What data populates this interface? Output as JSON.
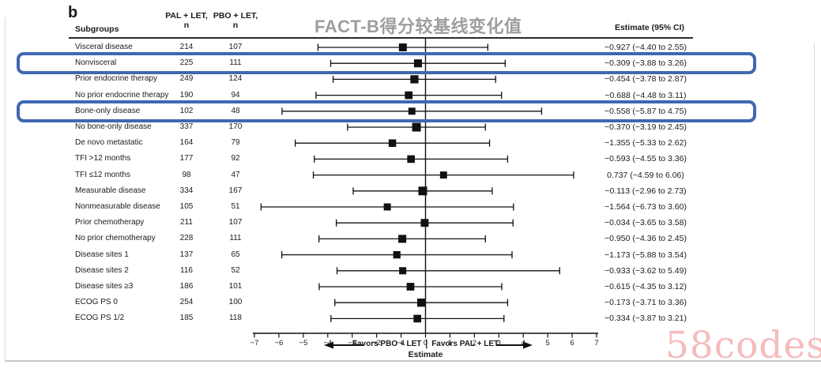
{
  "panel_label": "b",
  "watermark": "58codes",
  "columns": {
    "subgroups": "Subgroups",
    "pal_header": "PAL + LET,",
    "pal_n": "n",
    "pbo_header": "PBO + LET,",
    "pbo_n": "n",
    "estimate": "Estimate (95% CI)"
  },
  "colors": {
    "highlight_blue": "#3f68b1",
    "title_gray": "#9e9e9e",
    "watermark_pink": "#f5bcbc",
    "marker_black": "#111111"
  },
  "chart_data": {
    "type": "forest",
    "title": "FACT-B得分较基线变化值",
    "xlabel": "Estimate",
    "xlim": [
      -7,
      7
    ],
    "axis_ticks": [
      -7,
      -6,
      -5,
      -4,
      -3,
      -2,
      -1,
      0,
      1,
      2,
      3,
      4,
      5,
      6,
      7
    ],
    "annotations": {
      "favors_left": "Favors PBO + LET",
      "divider": "|",
      "favors_right": "Favors PAL + LET"
    },
    "rows": [
      {
        "subgroup": "Visceral disease",
        "pal_n": 214,
        "pbo_n": 107,
        "estimate": -0.927,
        "ci_low": -4.4,
        "ci_high": 2.55,
        "estimate_text": "−0.927 (−4.40 to 2.55)",
        "highlighted": false
      },
      {
        "subgroup": "Nonvisceral",
        "pal_n": 225,
        "pbo_n": 111,
        "estimate": -0.309,
        "ci_low": -3.88,
        "ci_high": 3.26,
        "estimate_text": "−0.309 (−3.88 to 3.26)",
        "highlighted": true
      },
      {
        "subgroup": "Prior endocrine therapy",
        "pal_n": 249,
        "pbo_n": 124,
        "estimate": -0.454,
        "ci_low": -3.78,
        "ci_high": 2.87,
        "estimate_text": "−0.454 (−3.78 to 2.87)",
        "highlighted": false
      },
      {
        "subgroup": "No prior endocrine therapy",
        "pal_n": 190,
        "pbo_n": 94,
        "estimate": -0.688,
        "ci_low": -4.48,
        "ci_high": 3.11,
        "estimate_text": "−0.688 (−4.48 to 3.11)",
        "highlighted": false
      },
      {
        "subgroup": "Bone-only disease",
        "pal_n": 102,
        "pbo_n": 48,
        "estimate": -0.558,
        "ci_low": -5.87,
        "ci_high": 4.75,
        "estimate_text": "−0.558 (−5.87 to 4.75)",
        "highlighted": true
      },
      {
        "subgroup": "No bone-only disease",
        "pal_n": 337,
        "pbo_n": 170,
        "estimate": -0.37,
        "ci_low": -3.19,
        "ci_high": 2.45,
        "estimate_text": "−0.370 (−3.19 to 2.45)",
        "highlighted": false
      },
      {
        "subgroup": "De novo metastatic",
        "pal_n": 164,
        "pbo_n": 79,
        "estimate": -1.355,
        "ci_low": -5.33,
        "ci_high": 2.62,
        "estimate_text": "−1.355 (−5.33 to 2.62)",
        "highlighted": false
      },
      {
        "subgroup": "TFI >12 months",
        "pal_n": 177,
        "pbo_n": 92,
        "estimate": -0.593,
        "ci_low": -4.55,
        "ci_high": 3.36,
        "estimate_text": "−0.593 (−4.55 to 3.36)",
        "highlighted": false
      },
      {
        "subgroup": "TFI ≤12 months",
        "pal_n": 98,
        "pbo_n": 47,
        "estimate": 0.737,
        "ci_low": -4.59,
        "ci_high": 6.06,
        "estimate_text": "0.737 (−4.59 to 6.06)",
        "highlighted": false
      },
      {
        "subgroup": "Measurable disease",
        "pal_n": 334,
        "pbo_n": 167,
        "estimate": -0.113,
        "ci_low": -2.96,
        "ci_high": 2.73,
        "estimate_text": "−0.113 (−2.96 to 2.73)",
        "highlighted": false
      },
      {
        "subgroup": "Nonmeasurable disease",
        "pal_n": 105,
        "pbo_n": 51,
        "estimate": -1.564,
        "ci_low": -6.73,
        "ci_high": 3.6,
        "estimate_text": "−1.564 (−6.73 to 3.60)",
        "highlighted": false
      },
      {
        "subgroup": "Prior chemotherapy",
        "pal_n": 211,
        "pbo_n": 107,
        "estimate": -0.034,
        "ci_low": -3.65,
        "ci_high": 3.58,
        "estimate_text": "−0.034 (−3.65 to 3.58)",
        "highlighted": false
      },
      {
        "subgroup": "No prior chemotherapy",
        "pal_n": 228,
        "pbo_n": 111,
        "estimate": -0.95,
        "ci_low": -4.36,
        "ci_high": 2.45,
        "estimate_text": "−0.950 (−4.36 to 2.45)",
        "highlighted": false
      },
      {
        "subgroup": "Disease sites 1",
        "pal_n": 137,
        "pbo_n": 65,
        "estimate": -1.173,
        "ci_low": -5.88,
        "ci_high": 3.54,
        "estimate_text": "−1.173 (−5.88 to 3.54)",
        "highlighted": false
      },
      {
        "subgroup": "Disease sites 2",
        "pal_n": 116,
        "pbo_n": 52,
        "estimate": -0.933,
        "ci_low": -3.62,
        "ci_high": 5.49,
        "estimate_text": "−0.933 (−3.62 to 5.49)",
        "highlighted": false
      },
      {
        "subgroup": "Disease sites ≥3",
        "pal_n": 186,
        "pbo_n": 101,
        "estimate": -0.615,
        "ci_low": -4.35,
        "ci_high": 3.12,
        "estimate_text": "−0.615 (−4.35 to 3.12)",
        "highlighted": false
      },
      {
        "subgroup": "ECOG PS 0",
        "pal_n": 254,
        "pbo_n": 100,
        "estimate": -0.173,
        "ci_low": -3.71,
        "ci_high": 3.36,
        "estimate_text": "−0.173 (−3.71 to 3.36)",
        "highlighted": false
      },
      {
        "subgroup": "ECOG PS 1/2",
        "pal_n": 185,
        "pbo_n": 118,
        "estimate": -0.334,
        "ci_low": -3.87,
        "ci_high": 3.21,
        "estimate_text": "−0.334 (−3.87 to 3.21)",
        "highlighted": false
      }
    ]
  }
}
